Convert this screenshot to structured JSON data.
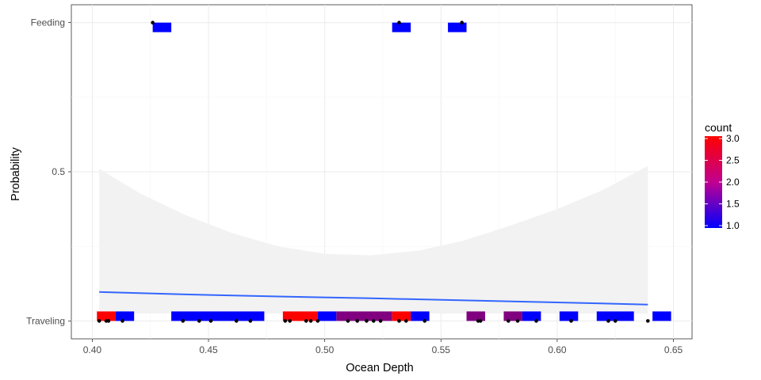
{
  "chart_data": {
    "type": "scatter",
    "title": "",
    "xlabel": "Ocean Depth",
    "ylabel": "Probability",
    "xlim": [
      0.391,
      0.658
    ],
    "ylim": [
      -0.06,
      1.06
    ],
    "x_ticks": [
      0.4,
      0.45,
      0.5,
      0.55,
      0.6,
      0.65
    ],
    "x_tick_labels": [
      "0.40",
      "0.45",
      "0.50",
      "0.55",
      "0.60",
      "0.65"
    ],
    "y_ticks": [
      0,
      0.5,
      1
    ],
    "y_tick_labels": [
      "Traveling",
      "0.5",
      "Feeding"
    ],
    "grid": true,
    "legend": {
      "title": "count",
      "position": "right",
      "labels": [
        "3.0",
        "2.5",
        "2.0",
        "1.5",
        "1.0"
      ],
      "values": [
        3.0,
        2.5,
        2.0,
        1.5,
        1.0
      ],
      "low_color": "#0000FF",
      "high_color": "#FF0000"
    },
    "points_feeding": [
      0.426,
      0.532,
      0.559
    ],
    "points_traveling": [
      0.403,
      0.406,
      0.407,
      0.413,
      0.439,
      0.446,
      0.451,
      0.462,
      0.468,
      0.483,
      0.485,
      0.492,
      0.494,
      0.497,
      0.51,
      0.514,
      0.518,
      0.521,
      0.524,
      0.532,
      0.535,
      0.543,
      0.566,
      0.567,
      0.579,
      0.583,
      0.591,
      0.606,
      0.622,
      0.625,
      0.639
    ],
    "bins_feeding": [
      {
        "xmin": 0.426,
        "xmax": 0.434,
        "count": 1
      },
      {
        "xmin": 0.529,
        "xmax": 0.537,
        "count": 1
      },
      {
        "xmin": 0.553,
        "xmax": 0.561,
        "count": 1
      }
    ],
    "bins_traveling": [
      {
        "xmin": 0.402,
        "xmax": 0.41,
        "count": 3
      },
      {
        "xmin": 0.41,
        "xmax": 0.418,
        "count": 1
      },
      {
        "xmin": 0.434,
        "xmax": 0.474,
        "count": 1
      },
      {
        "xmin": 0.482,
        "xmax": 0.497,
        "count": 3
      },
      {
        "xmin": 0.497,
        "xmax": 0.505,
        "count": 1
      },
      {
        "xmin": 0.505,
        "xmax": 0.529,
        "count": 2
      },
      {
        "xmin": 0.529,
        "xmax": 0.537,
        "count": 3
      },
      {
        "xmin": 0.537,
        "xmax": 0.545,
        "count": 1
      },
      {
        "xmin": 0.561,
        "xmax": 0.569,
        "count": 2
      },
      {
        "xmin": 0.577,
        "xmax": 0.585,
        "count": 2
      },
      {
        "xmin": 0.585,
        "xmax": 0.593,
        "count": 1
      },
      {
        "xmin": 0.601,
        "xmax": 0.609,
        "count": 1
      },
      {
        "xmin": 0.617,
        "xmax": 0.633,
        "count": 1
      },
      {
        "xmin": 0.641,
        "xmax": 0.649,
        "count": 1
      }
    ],
    "fit_line": {
      "color": "#3366FF",
      "x": [
        0.403,
        0.44,
        0.48,
        0.52,
        0.56,
        0.6,
        0.639
      ],
      "y": [
        0.097,
        0.089,
        0.082,
        0.076,
        0.069,
        0.062,
        0.055
      ]
    },
    "confidence_band": {
      "color": "#F2F2F2",
      "x": [
        0.403,
        0.42,
        0.44,
        0.46,
        0.48,
        0.5,
        0.52,
        0.54,
        0.56,
        0.58,
        0.6,
        0.62,
        0.639
      ],
      "upper": [
        0.51,
        0.43,
        0.355,
        0.295,
        0.25,
        0.225,
        0.22,
        0.235,
        0.27,
        0.32,
        0.375,
        0.44,
        0.52
      ],
      "lower": [
        0.025,
        0.025,
        0.025,
        0.025,
        0.025,
        0.025,
        0.025,
        0.025,
        0.025,
        0.025,
        0.025,
        0.025,
        0.025
      ]
    }
  }
}
